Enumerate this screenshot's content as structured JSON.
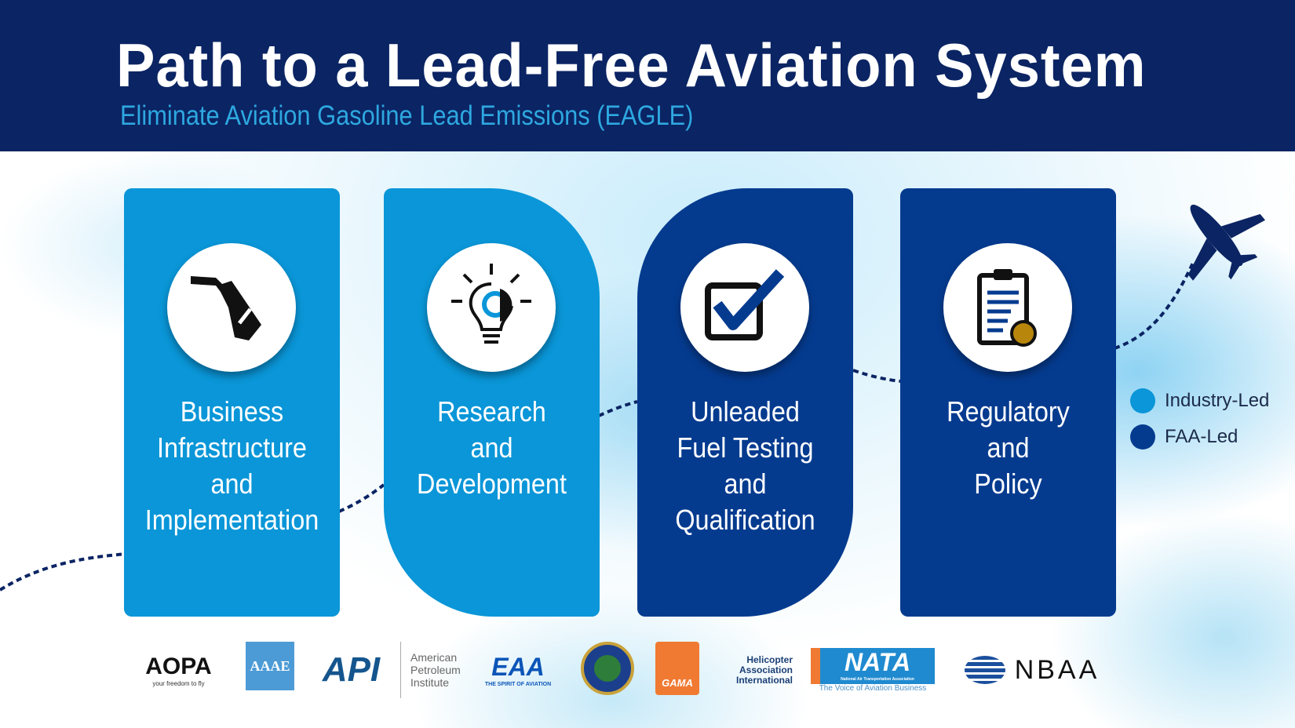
{
  "header": {
    "title": "Path to a Lead-Free Aviation System",
    "subtitle": "Eliminate Aviation Gasoline Lead Emissions (EAGLE)"
  },
  "cards": [
    {
      "lines": [
        "Business",
        "Infrastructure",
        "and",
        "Implementation"
      ],
      "icon": "fuel-nozzle-icon",
      "category": "Industry-Led"
    },
    {
      "lines": [
        "Research",
        "and",
        "Development"
      ],
      "icon": "lightbulb-gear-icon",
      "category": "Industry-Led"
    },
    {
      "lines": [
        "Unleaded",
        "Fuel Testing",
        "and",
        "Qualification"
      ],
      "icon": "checkbox-icon",
      "category": "FAA-Led"
    },
    {
      "lines": [
        "Regulatory",
        "and",
        "Policy"
      ],
      "icon": "clipboard-icon",
      "category": "FAA-Led"
    }
  ],
  "legend": [
    {
      "label": "Industry-Led",
      "color": "#0a96d8"
    },
    {
      "label": "FAA-Led",
      "color": "#053b8f"
    }
  ],
  "logos": {
    "aopa": {
      "name": "AOPA",
      "tagline": "your freedom to fly"
    },
    "aaae": {
      "name": "AAAE"
    },
    "api": {
      "name": "API",
      "full": [
        "American",
        "Petroleum",
        "Institute"
      ]
    },
    "eaa": {
      "name": "EAA",
      "tagline": "THE SPIRIT OF AVIATION"
    },
    "faa": {
      "name": "FEDERAL AVIATION ADMINISTRATION"
    },
    "gama": {
      "name": "GAMA"
    },
    "hai": {
      "full": [
        "Helicopter",
        "Association",
        "International"
      ]
    },
    "nata": {
      "name": "NATA",
      "full": "National Air Transportation Association",
      "tagline": "The Voice of Aviation Business"
    },
    "nbaa": {
      "name": "NBAA"
    }
  },
  "colors": {
    "header": "#0b2463",
    "industry": "#0a96d8",
    "faa": "#053b8f",
    "subtitle": "#2ea8e0"
  }
}
